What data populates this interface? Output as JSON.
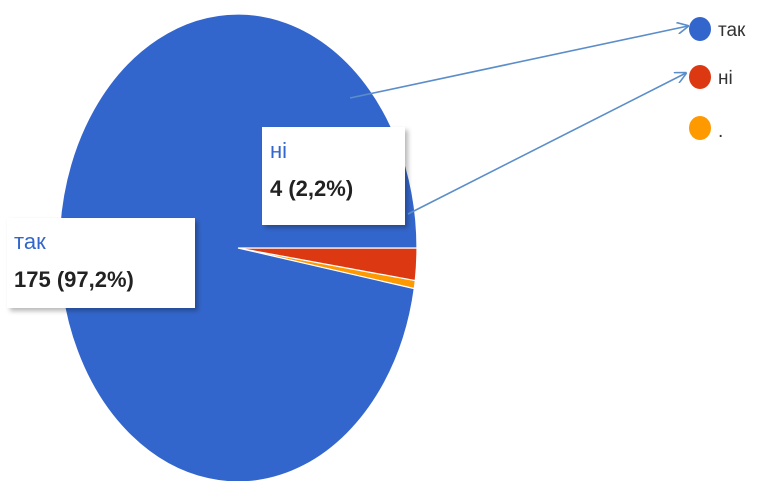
{
  "chart_data": {
    "type": "pie",
    "slices": [
      {
        "label": "так",
        "value": 175,
        "percent": "97,2%",
        "color": "#3366cc"
      },
      {
        "label": "ні",
        "value": 4,
        "percent": "2,2%",
        "color": "#dc3912"
      },
      {
        "label": ".",
        "value": 1,
        "percent": "",
        "color": "#ff9900"
      }
    ],
    "legend": {
      "position": "top-right",
      "entries": [
        "так",
        "ні",
        "."
      ]
    },
    "callouts": [
      {
        "label": "ні",
        "value_text": "4 (2,2%)"
      },
      {
        "label": "так",
        "value_text": "175 (97,2%)"
      }
    ]
  }
}
